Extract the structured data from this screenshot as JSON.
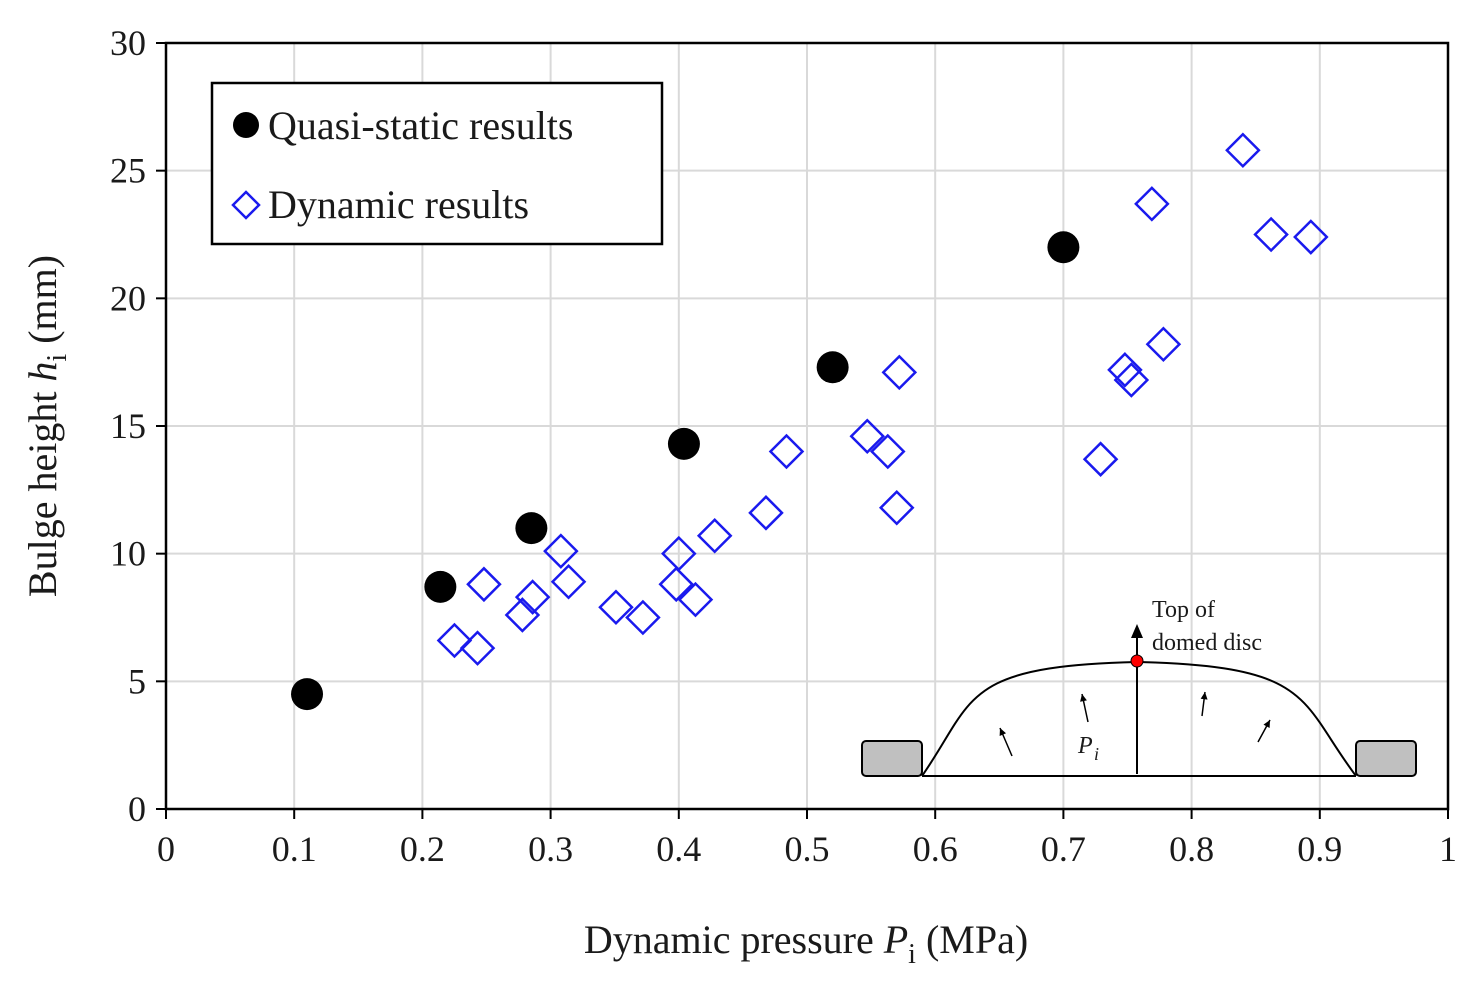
{
  "chart_data": {
    "type": "scatter",
    "xlabel": {
      "main": "Dynamic pressure ",
      "var": "P",
      "sub": "i",
      "unit": " (MPa)"
    },
    "ylabel": {
      "main": "Bulge height ",
      "var": "h",
      "sub": "i",
      "unit": " (mm)"
    },
    "xlim": [
      0,
      1
    ],
    "ylim": [
      0,
      30
    ],
    "x_ticks": [
      0,
      0.1,
      0.2,
      0.3,
      0.4,
      0.5,
      0.6,
      0.7,
      0.8,
      0.9,
      1
    ],
    "x_tick_labels": [
      "0",
      "0.1",
      "0.2",
      "0.3",
      "0.4",
      "0.5",
      "0.6",
      "0.7",
      "0.8",
      "0.9",
      "1"
    ],
    "y_ticks": [
      0,
      5,
      10,
      15,
      20,
      25,
      30
    ],
    "y_tick_labels": [
      "0",
      "5",
      "10",
      "15",
      "20",
      "25",
      "30"
    ],
    "grid": true,
    "legend_position": "top-left",
    "series": [
      {
        "name": "Quasi-static results",
        "marker": "filled-circle",
        "color": "#000000",
        "x": [
          0.11,
          0.214,
          0.285,
          0.404,
          0.52,
          0.7
        ],
        "y": [
          4.5,
          8.7,
          11.0,
          14.3,
          17.3,
          22.0
        ]
      },
      {
        "name": "Dynamic results",
        "marker": "open-diamond",
        "color": "#1a1aee",
        "x": [
          0.225,
          0.243,
          0.248,
          0.278,
          0.286,
          0.308,
          0.314,
          0.351,
          0.372,
          0.398,
          0.4,
          0.413,
          0.428,
          0.468,
          0.484,
          0.547,
          0.563,
          0.57,
          0.572,
          0.729,
          0.748,
          0.753,
          0.769,
          0.778,
          0.84,
          0.862,
          0.893
        ],
        "y": [
          6.6,
          6.3,
          8.8,
          7.6,
          8.3,
          10.1,
          8.9,
          7.9,
          7.5,
          8.8,
          10.0,
          8.2,
          10.7,
          11.6,
          14.0,
          14.6,
          14.0,
          11.8,
          17.1,
          13.7,
          17.2,
          16.8,
          23.7,
          18.2,
          25.8,
          22.5,
          22.4
        ]
      }
    ],
    "inset": {
      "label_top": "Top of",
      "label_bottom": "domed disc",
      "pressure_var": "P",
      "pressure_sub": "i",
      "dot_color": "#ff0000",
      "clamp_color": "#c0c0c0"
    }
  }
}
